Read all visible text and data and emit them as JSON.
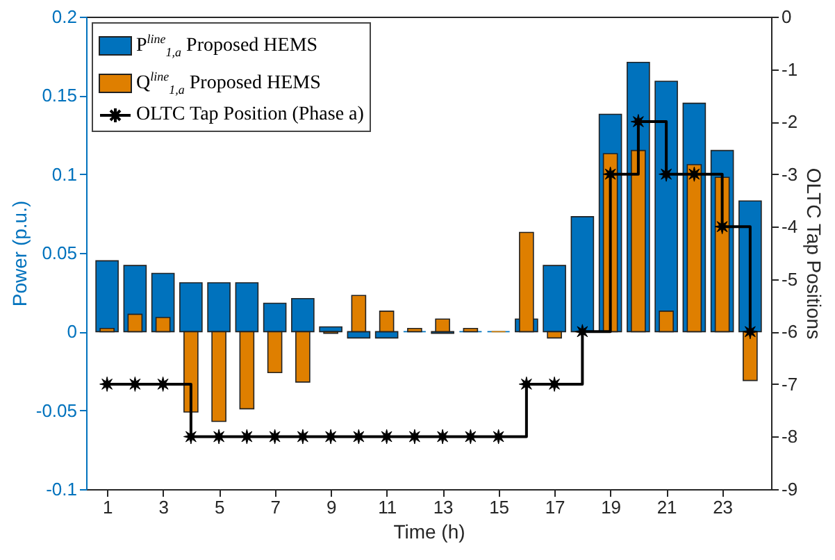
{
  "chart_data": {
    "type": "bar",
    "xlabel": "Time (h)",
    "ylabel": "Power (p.u.)",
    "y2label": "OLTC Tap Positions",
    "x": [
      1,
      2,
      3,
      4,
      5,
      6,
      7,
      8,
      9,
      10,
      11,
      12,
      13,
      14,
      15,
      16,
      17,
      18,
      19,
      20,
      21,
      22,
      23,
      24
    ],
    "xlim": [
      0.5,
      24.5
    ],
    "xticks": [
      1,
      3,
      5,
      7,
      9,
      11,
      13,
      15,
      17,
      19,
      21,
      23
    ],
    "ylim": [
      -0.1,
      0.2
    ],
    "yticks": [
      -0.1,
      -0.05,
      0,
      0.05,
      0.1,
      0.15,
      0.2
    ],
    "y2lim": [
      -9,
      0
    ],
    "y2ticks": [
      -9,
      -8,
      -7,
      -6,
      -5,
      -4,
      -3,
      -2,
      -1,
      0
    ],
    "legend": "top left",
    "grid": false,
    "series": [
      {
        "name": "P$^{line}$$_{1,a}$ Proposed HEMS",
        "color": "#0072bd",
        "values": [
          0.045,
          0.042,
          0.037,
          0.031,
          0.031,
          0.031,
          0.018,
          0.021,
          0.003,
          -0.004,
          -0.004,
          0,
          -0.001,
          0,
          0,
          0.008,
          0.042,
          0.073,
          0.138,
          0.171,
          0.159,
          0.145,
          0.115,
          0.083
        ]
      },
      {
        "name": "Q$^{line}$$_{1,a}$ Proposed HEMS",
        "color": "#df7f00",
        "values": [
          0.002,
          0.011,
          0.009,
          -0.051,
          -0.057,
          -0.049,
          -0.026,
          -0.032,
          -0.001,
          0.023,
          0.013,
          0.002,
          0.008,
          0.002,
          0,
          0.063,
          -0.004,
          0,
          0.113,
          0.115,
          0.013,
          0.106,
          0.098,
          -0.031
        ]
      },
      {
        "name": "OLTC Tap Position (Phase a)",
        "type": "step",
        "axis": "y2",
        "color": "#000000",
        "marker": "star",
        "line_style": "solid",
        "values": [
          -7,
          -7,
          -7,
          -8,
          -8,
          -8,
          -8,
          -8,
          -8,
          -8,
          -8,
          -8,
          -8,
          -8,
          -8,
          -7,
          -7,
          -6,
          -3,
          -2,
          -3,
          -3,
          -4,
          -6
        ]
      }
    ]
  }
}
